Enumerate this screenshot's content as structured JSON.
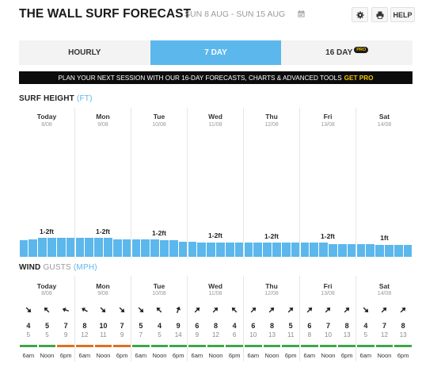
{
  "header": {
    "title": "THE WALL SURF FORECAST",
    "date_range": "SUN 8 AUG - SUN 15 AUG",
    "settings_icon": "gear-icon",
    "print_icon": "printer-icon",
    "help_label": "HELP"
  },
  "tabs": [
    {
      "label": "HOURLY",
      "active": false
    },
    {
      "label": "7 DAY",
      "active": true
    },
    {
      "label": "16 DAY",
      "active": false,
      "badge": "PRO"
    }
  ],
  "banner": {
    "text": "PLAN YOUR NEXT SESSION WITH OUR 16-DAY FORECASTS, CHARTS & ADVANCED TOOLS",
    "cta": "GET PRO"
  },
  "surf": {
    "title": "SURF HEIGHT",
    "unit": "(FT)",
    "days": [
      {
        "name": "Today",
        "date": "8/08",
        "peak": "1-2ft"
      },
      {
        "name": "Mon",
        "date": "9/08",
        "peak": "1-2ft"
      },
      {
        "name": "Tue",
        "date": "10/08",
        "peak": "1-2ft"
      },
      {
        "name": "Wed",
        "date": "11/08",
        "peak": "1-2ft"
      },
      {
        "name": "Thu",
        "date": "12/08",
        "peak": "1-2ft"
      },
      {
        "name": "Fri",
        "date": "13/08",
        "peak": "1-2ft"
      },
      {
        "name": "Sat",
        "date": "14/08",
        "peak": "1ft"
      }
    ],
    "bar_levels": [
      [
        1.4,
        1.5,
        1.6,
        1.6,
        1.6,
        1.6
      ],
      [
        1.6,
        1.6,
        1.6,
        1.6,
        1.5,
        1.5
      ],
      [
        1.5,
        1.5,
        1.5,
        1.4,
        1.4,
        1.3
      ],
      [
        1.3,
        1.2,
        1.2,
        1.2,
        1.2,
        1.2
      ],
      [
        1.2,
        1.2,
        1.2,
        1.2,
        1.2,
        1.2
      ],
      [
        1.2,
        1.2,
        1.2,
        1.1,
        1.1,
        1.1
      ],
      [
        1.1,
        1.1,
        1.0,
        1.0,
        1.0,
        1.0
      ]
    ]
  },
  "wind": {
    "title": "WIND",
    "gusts_label": "GUSTS",
    "unit": "(MPH)",
    "days": [
      {
        "name": "Today",
        "date": "8/08",
        "slots": [
          {
            "time": "6am",
            "speed": "4",
            "gust": "5",
            "dir": 135,
            "color": "#3fa64a"
          },
          {
            "time": "Noon",
            "speed": "5",
            "gust": "5",
            "dir": 315,
            "color": "#3fa64a"
          },
          {
            "time": "6pm",
            "speed": "7",
            "gust": "9",
            "dir": 290,
            "color": "#e0701f"
          }
        ]
      },
      {
        "name": "Mon",
        "date": "9/08",
        "slots": [
          {
            "time": "6am",
            "speed": "8",
            "gust": "12",
            "dir": 300,
            "color": "#e0701f"
          },
          {
            "time": "Noon",
            "speed": "10",
            "gust": "11",
            "dir": 135,
            "color": "#e0701f"
          },
          {
            "time": "6pm",
            "speed": "7",
            "gust": "9",
            "dir": 135,
            "color": "#e0701f"
          }
        ]
      },
      {
        "name": "Tue",
        "date": "10/08",
        "slots": [
          {
            "time": "6am",
            "speed": "5",
            "gust": "7",
            "dir": 135,
            "color": "#3fa64a"
          },
          {
            "time": "Noon",
            "speed": "4",
            "gust": "5",
            "dir": 315,
            "color": "#3fa64a"
          },
          {
            "time": "6pm",
            "speed": "9",
            "gust": "14",
            "dir": 20,
            "color": "#3fa64a"
          }
        ]
      },
      {
        "name": "Wed",
        "date": "11/08",
        "slots": [
          {
            "time": "6am",
            "speed": "6",
            "gust": "9",
            "dir": 45,
            "color": "#3fa64a"
          },
          {
            "time": "Noon",
            "speed": "8",
            "gust": "12",
            "dir": 45,
            "color": "#3fa64a"
          },
          {
            "time": "6pm",
            "speed": "4",
            "gust": "6",
            "dir": 315,
            "color": "#3fa64a"
          }
        ]
      },
      {
        "name": "Thu",
        "date": "12/08",
        "slots": [
          {
            "time": "6am",
            "speed": "6",
            "gust": "10",
            "dir": 45,
            "color": "#3fa64a"
          },
          {
            "time": "Noon",
            "speed": "8",
            "gust": "13",
            "dir": 45,
            "color": "#3fa64a"
          },
          {
            "time": "6pm",
            "speed": "5",
            "gust": "11",
            "dir": 45,
            "color": "#3fa64a"
          }
        ]
      },
      {
        "name": "Fri",
        "date": "13/08",
        "slots": [
          {
            "time": "6am",
            "speed": "6",
            "gust": "8",
            "dir": 45,
            "color": "#3fa64a"
          },
          {
            "time": "Noon",
            "speed": "7",
            "gust": "10",
            "dir": 45,
            "color": "#3fa64a"
          },
          {
            "time": "6pm",
            "speed": "8",
            "gust": "13",
            "dir": 45,
            "color": "#3fa64a"
          }
        ]
      },
      {
        "name": "Sat",
        "date": "14/08",
        "slots": [
          {
            "time": "6am",
            "speed": "4",
            "gust": "5",
            "dir": 135,
            "color": "#3fa64a"
          },
          {
            "time": "Noon",
            "speed": "7",
            "gust": "12",
            "dir": 45,
            "color": "#3fa64a"
          },
          {
            "time": "6pm",
            "speed": "8",
            "gust": "13",
            "dir": 45,
            "color": "#3fa64a"
          }
        ]
      }
    ]
  },
  "colors": {
    "accent": "#5cb7ec",
    "banner_cta": "#f5c200",
    "wind_good": "#3fa64a",
    "wind_onshore": "#e0701f"
  }
}
